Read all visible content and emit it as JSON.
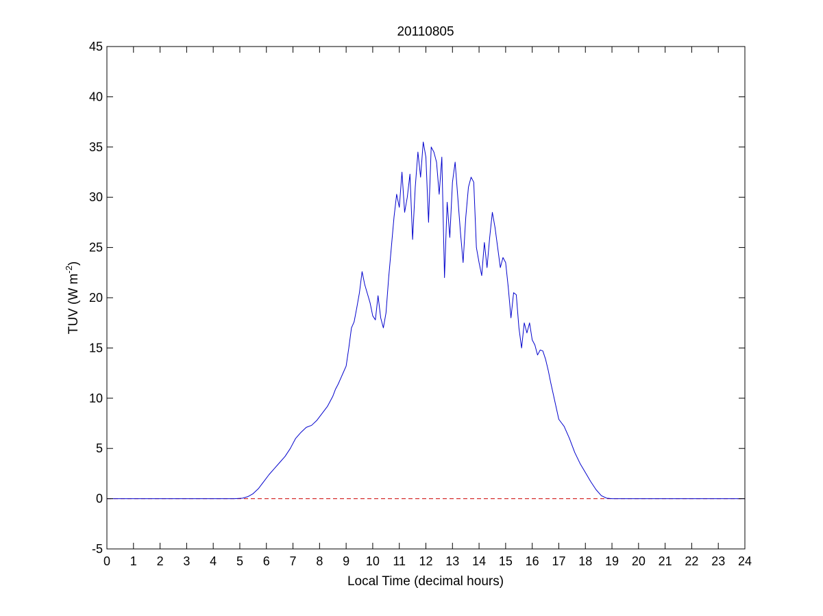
{
  "chart_data": {
    "type": "line",
    "title": "20110805",
    "xlabel": "Local Time (decimal hours)",
    "ylabel_main": "TUV (W m",
    "ylabel_sup": "-2",
    "ylabel_end": ")",
    "xlim": [
      0,
      24
    ],
    "ylim": [
      -5,
      45
    ],
    "xticks": [
      0,
      1,
      2,
      3,
      4,
      5,
      6,
      7,
      8,
      9,
      10,
      11,
      12,
      13,
      14,
      15,
      16,
      17,
      18,
      19,
      20,
      21,
      22,
      23,
      24
    ],
    "yticks": [
      -5,
      0,
      5,
      10,
      15,
      20,
      25,
      30,
      35,
      40,
      45
    ],
    "grid": false,
    "series": [
      {
        "color": "#0000cc",
        "style": "solid",
        "x": [
          0,
          4.8,
          5.1,
          5.3,
          5.5,
          5.7,
          5.9,
          6.1,
          6.3,
          6.5,
          6.7,
          6.9,
          7.1,
          7.3,
          7.5,
          7.7,
          7.9,
          8.1,
          8.3,
          8.5,
          8.6,
          8.7,
          8.8,
          8.9,
          9.0,
          9.1,
          9.2,
          9.3,
          9.4,
          9.5,
          9.6,
          9.7,
          9.8,
          9.9,
          10.0,
          10.1,
          10.2,
          10.3,
          10.4,
          10.5,
          10.6,
          10.7,
          10.8,
          10.9,
          11.0,
          11.1,
          11.2,
          11.3,
          11.4,
          11.5,
          11.6,
          11.7,
          11.8,
          11.9,
          12.0,
          12.1,
          12.2,
          12.3,
          12.4,
          12.5,
          12.6,
          12.7,
          12.8,
          12.9,
          13.0,
          13.1,
          13.2,
          13.3,
          13.4,
          13.5,
          13.6,
          13.7,
          13.8,
          13.9,
          14.0,
          14.1,
          14.2,
          14.3,
          14.4,
          14.5,
          14.6,
          14.7,
          14.8,
          14.9,
          15.0,
          15.1,
          15.2,
          15.3,
          15.4,
          15.5,
          15.6,
          15.7,
          15.8,
          15.9,
          16.0,
          16.1,
          16.2,
          16.3,
          16.4,
          16.5,
          16.6,
          16.7,
          16.8,
          16.9,
          17.0,
          17.2,
          17.4,
          17.6,
          17.8,
          18.0,
          18.2,
          18.4,
          18.6,
          18.8,
          19.0,
          19.2,
          19.4,
          19.6,
          24
        ],
        "y": [
          0,
          0,
          0.05,
          0.2,
          0.5,
          1.0,
          1.7,
          2.4,
          3.0,
          3.6,
          4.2,
          5.0,
          6.0,
          6.6,
          7.1,
          7.3,
          7.8,
          8.5,
          9.2,
          10.2,
          10.9,
          11.4,
          12.0,
          12.6,
          13.2,
          15.0,
          17.0,
          17.6,
          19.0,
          20.5,
          22.6,
          21.3,
          20.4,
          19.5,
          18.2,
          17.8,
          20.2,
          18.0,
          17.0,
          18.5,
          22.0,
          25.0,
          28.0,
          30.3,
          29.0,
          32.5,
          28.5,
          30.0,
          32.3,
          25.8,
          31.0,
          34.5,
          32.0,
          35.5,
          34.0,
          27.5,
          35.0,
          34.5,
          33.5,
          30.3,
          34.0,
          22.0,
          29.5,
          26.0,
          31.5,
          33.5,
          30.0,
          26.5,
          23.5,
          28.0,
          31.0,
          32.0,
          31.5,
          25.0,
          23.5,
          22.2,
          25.5,
          23.0,
          26.0,
          28.5,
          27.0,
          25.0,
          23.0,
          24.0,
          23.5,
          21.0,
          18.0,
          20.5,
          20.3,
          17.0,
          15.0,
          17.5,
          16.5,
          17.5,
          15.8,
          15.3,
          14.3,
          14.8,
          14.7,
          13.9,
          12.8,
          11.5,
          10.3,
          9.1,
          7.9,
          7.2,
          6.0,
          4.6,
          3.5,
          2.6,
          1.7,
          0.9,
          0.3,
          0.05,
          0,
          0,
          0,
          0,
          0
        ]
      },
      {
        "color": "#cc0000",
        "style": "dashed",
        "x": [
          0,
          24
        ],
        "y": [
          0,
          0
        ]
      }
    ]
  }
}
